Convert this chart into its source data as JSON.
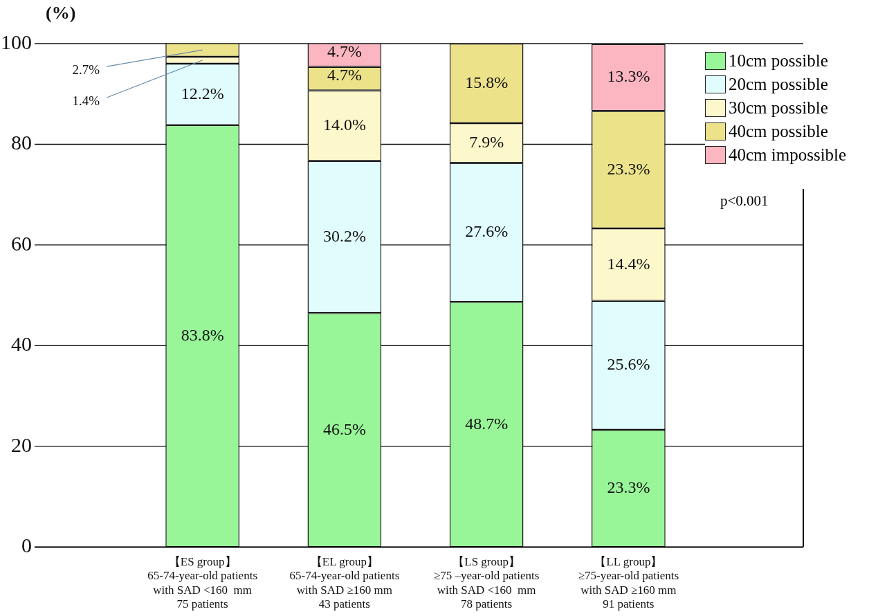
{
  "chart_data": {
    "type": "bar",
    "stacked": true,
    "ylabel": "(%)",
    "categories": [
      "【ES group】\n65-74-year-old patients\nwith SAD <160  mm\n75 patients",
      "【EL group】\n65-74-year-old patients\nwith SAD ≥160 mm\n43 patients",
      "【LS group】\n≥75 –year-old patients\nwith SAD <160  mm\n78 patients",
      "【LL group】\n≥75-year-old patients\nwith SAD ≥160 mm\n91 patients"
    ],
    "series": [
      {
        "name": "10cm possible",
        "color": "#98f598",
        "values": [
          83.8,
          46.5,
          48.7,
          23.3
        ],
        "value_labels": [
          "83.8%",
          "46.5%",
          "48.7%",
          "23.3%"
        ]
      },
      {
        "name": "20cm possible",
        "color": "#e0fcfc",
        "values": [
          12.2,
          30.2,
          27.6,
          25.6
        ],
        "value_labels": [
          "12.2%",
          "30.2%",
          "27.6%",
          "25.6%"
        ]
      },
      {
        "name": "30cm possible",
        "color": "#fdf8cc",
        "values": [
          1.4,
          14.0,
          7.9,
          14.4
        ],
        "value_labels": [
          "1.4%",
          "14.0%",
          "7.9%",
          "14.4%"
        ]
      },
      {
        "name": "40cm possible",
        "color": "#ece28a",
        "values": [
          2.7,
          4.7,
          15.8,
          23.3
        ],
        "value_labels": [
          "2.7%",
          "4.7%",
          "15.8%",
          "23.3%"
        ]
      },
      {
        "name": "40cm impossible",
        "color": "#fbb6c1",
        "values": [
          null,
          4.7,
          null,
          13.3
        ],
        "value_labels": [
          null,
          "4.7%",
          null,
          "13.3%"
        ]
      }
    ],
    "ylim": [
      0,
      100
    ],
    "yticks": [
      0,
      20,
      40,
      60,
      80,
      100
    ],
    "grid": "y",
    "legend": "top right",
    "annotations": [
      "p<0.001"
    ]
  }
}
